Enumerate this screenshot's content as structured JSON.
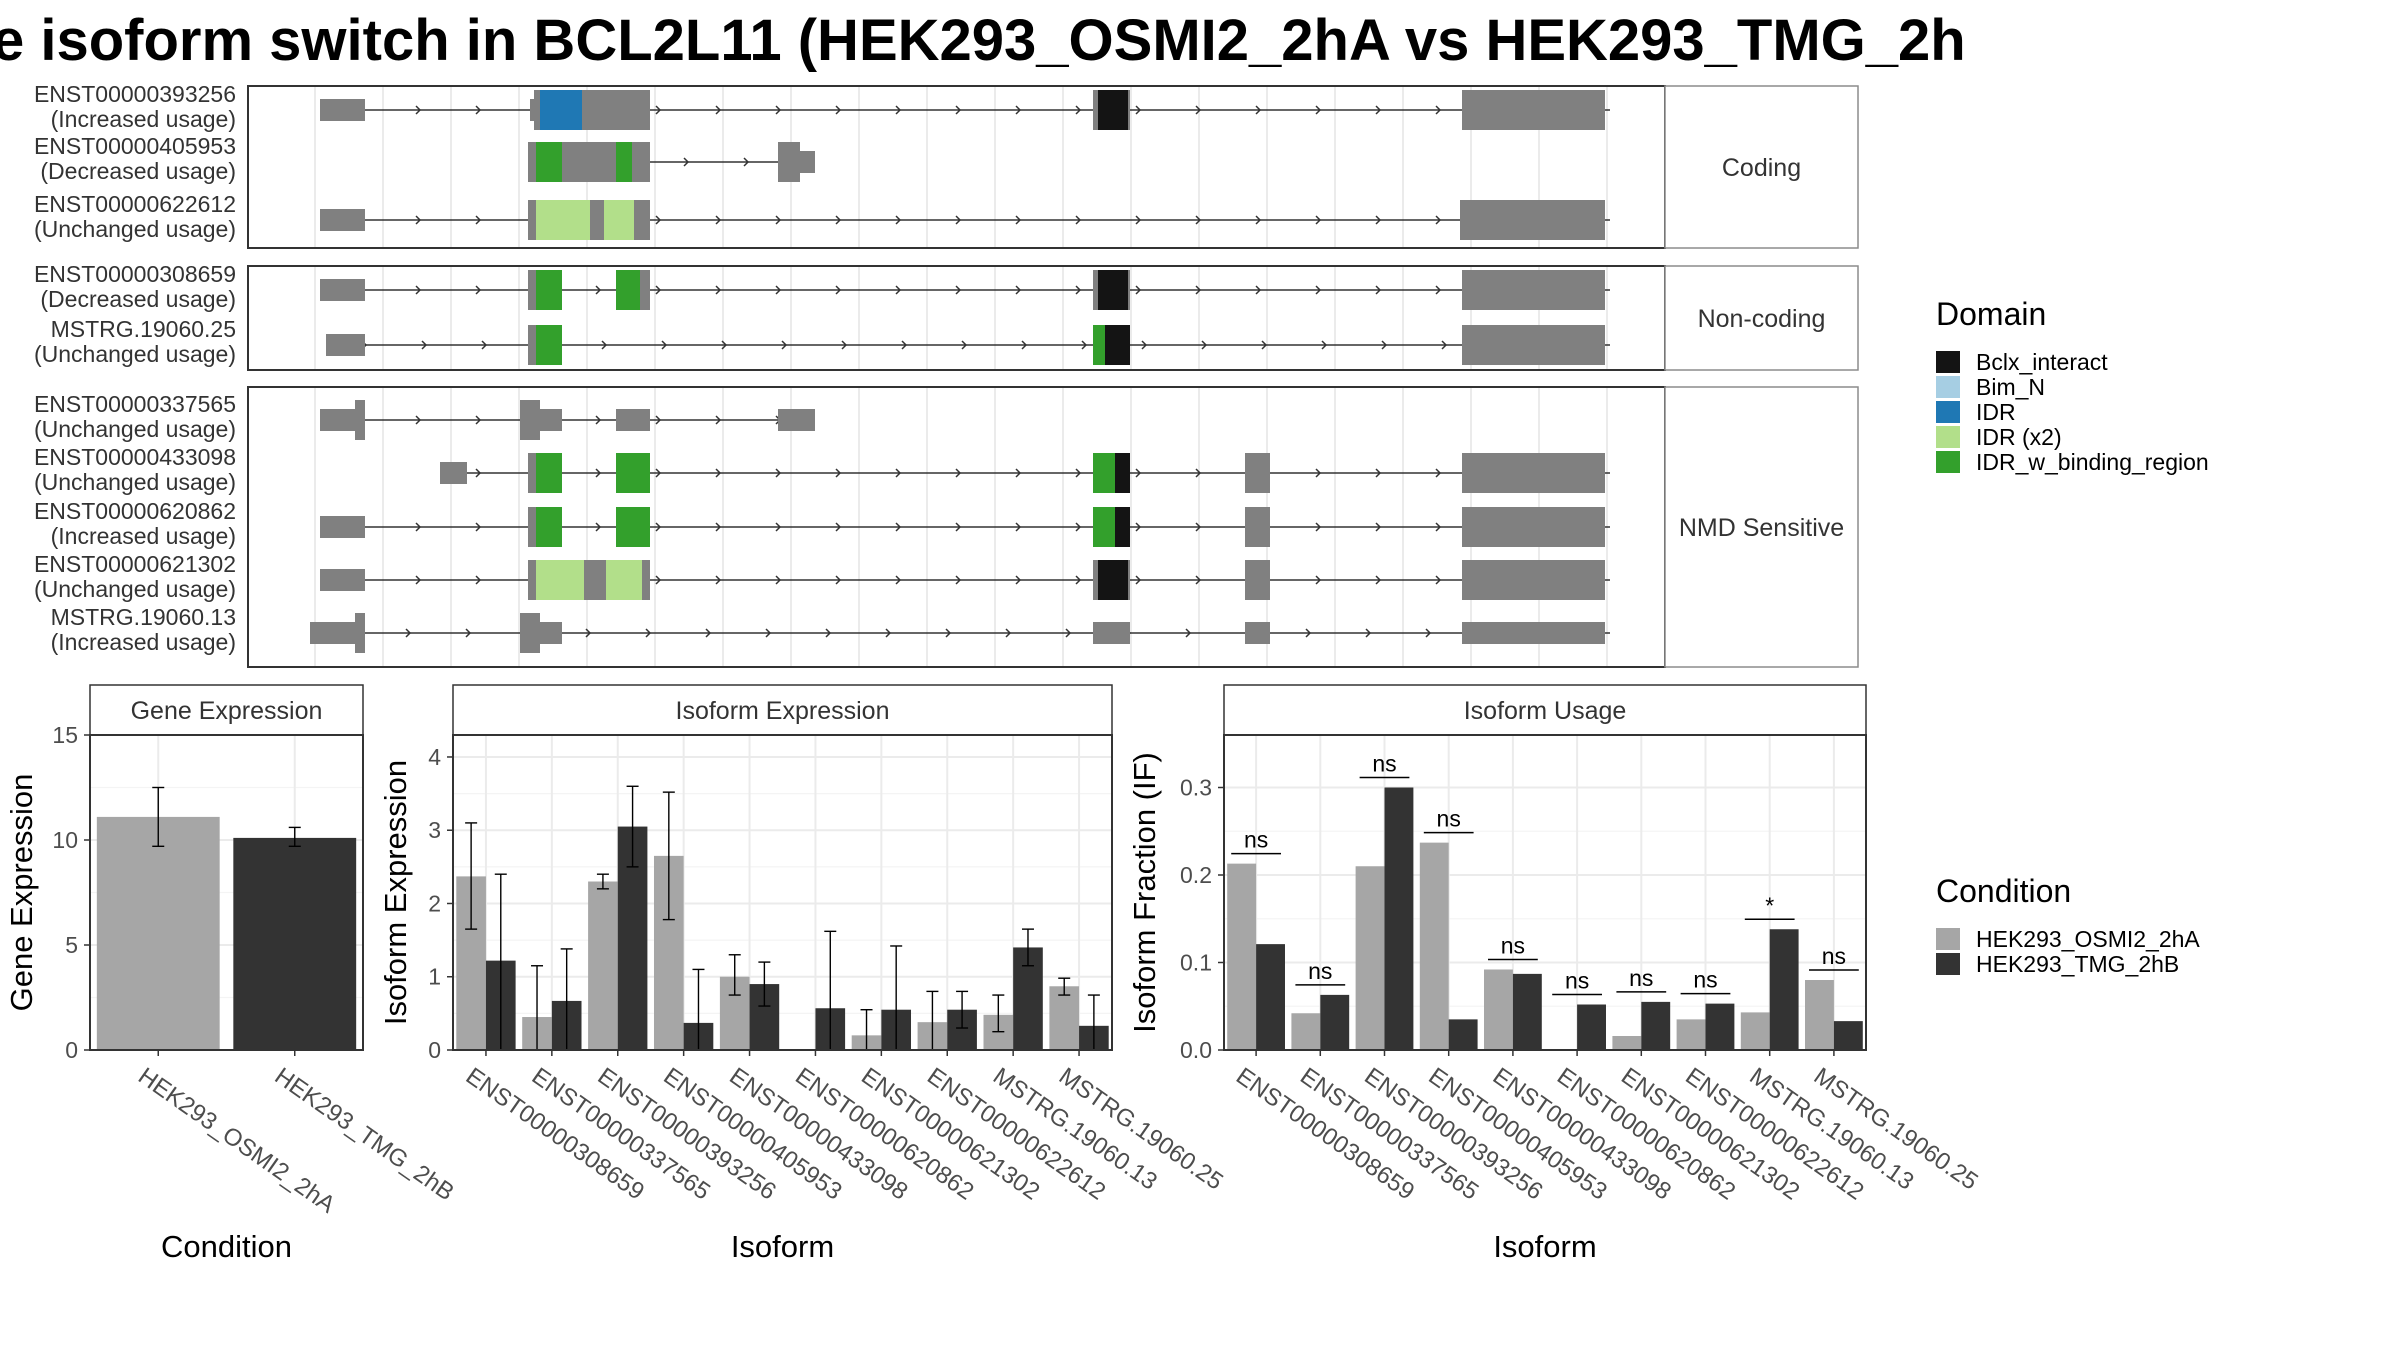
{
  "title": "e isoform switch in BCL2L11 (HEK293_OSMI2_2hA vs HEK293_TMG_2h",
  "colors": {
    "ink": "#000000",
    "exon": "#808080",
    "panel_border": "#333333",
    "grid": "#ebebeb",
    "strip_bg": "#ffffff",
    "cond_light": "#a6a6a6",
    "cond_dark": "#333333"
  },
  "structure": {
    "facets": [
      {
        "label": "Coding",
        "isoforms": [
          {
            "id": "ENST00000393256",
            "usage": "(Increased usage)"
          },
          {
            "id": "ENST00000405953",
            "usage": "(Decreased usage)"
          },
          {
            "id": "ENST00000622612",
            "usage": "(Unchanged usage)"
          }
        ]
      },
      {
        "label": "Non-coding",
        "isoforms": [
          {
            "id": "ENST00000308659",
            "usage": "(Decreased usage)"
          },
          {
            "id": "MSTRG.19060.25",
            "usage": "(Unchanged usage)"
          }
        ]
      },
      {
        "label": "NMD Sensitive",
        "isoforms": [
          {
            "id": "ENST00000337565",
            "usage": "(Unchanged usage)"
          },
          {
            "id": "ENST00000433098",
            "usage": "(Unchanged usage)"
          },
          {
            "id": "ENST00000620862",
            "usage": "(Increased usage)"
          },
          {
            "id": "ENST00000621302",
            "usage": "(Unchanged usage)"
          },
          {
            "id": "MSTRG.19060.13",
            "usage": "(Increased usage)"
          }
        ]
      }
    ]
  },
  "domain_legend": {
    "title": "Domain",
    "items": [
      {
        "label": "Bclx_interact",
        "color": "#141414"
      },
      {
        "label": "Bim_N",
        "color": "#a6cee3"
      },
      {
        "label": "IDR",
        "color": "#1f78b4"
      },
      {
        "label": "IDR (x2)",
        "color": "#b2df8a"
      },
      {
        "label": "IDR_w_binding_region",
        "color": "#33a02c"
      }
    ]
  },
  "condition_legend": {
    "title": "Condition",
    "items": [
      {
        "label": "HEK293_OSMI2_2hA",
        "color": "#a6a6a6"
      },
      {
        "label": "HEK293_TMG_2hB",
        "color": "#333333"
      }
    ]
  },
  "chart_data": [
    {
      "type": "bar",
      "title": "Gene Expression",
      "xlabel": "Condition",
      "ylabel": "Gene Expression",
      "ylim": [
        0,
        15
      ],
      "yticks": [
        0,
        5,
        10,
        15
      ],
      "categories": [
        "HEK293_OSMI2_2hA",
        "HEK293_TMG_2hB"
      ],
      "values": [
        11.1,
        10.1
      ],
      "errors": [
        [
          9.7,
          12.5
        ],
        [
          9.7,
          10.6
        ]
      ]
    },
    {
      "type": "bar",
      "title": "Isoform Expression",
      "xlabel": "Isoform",
      "ylabel": "Isoform Expression",
      "ylim": [
        0,
        4.3
      ],
      "yticks": [
        0,
        1,
        2,
        3,
        4
      ],
      "categories": [
        "ENST00000308659",
        "ENST00000337565",
        "ENST00000393256",
        "ENST00000405953",
        "ENST00000433098",
        "ENST00000620862",
        "ENST00000621302",
        "ENST00000622612",
        "MSTRG.19060.13",
        "MSTRG.19060.25"
      ],
      "series": [
        {
          "name": "HEK293_OSMI2_2hA",
          "values": [
            2.37,
            0.45,
            2.3,
            2.65,
            1.0,
            0.0,
            0.2,
            0.38,
            0.48,
            0.87
          ],
          "errors": [
            [
              1.65,
              3.1
            ],
            [
              0.0,
              1.15
            ],
            [
              2.2,
              2.4
            ],
            [
              1.78,
              3.52
            ],
            [
              0.75,
              1.3
            ],
            [
              0.0,
              0.0
            ],
            [
              0.0,
              0.55
            ],
            [
              0.0,
              0.8
            ],
            [
              0.25,
              0.75
            ],
            [
              0.75,
              0.98
            ]
          ]
        },
        {
          "name": "HEK293_TMG_2hB",
          "values": [
            1.22,
            0.67,
            3.05,
            0.37,
            0.9,
            0.57,
            0.55,
            0.55,
            1.4,
            0.33
          ],
          "errors": [
            [
              0.0,
              2.4
            ],
            [
              0.0,
              1.38
            ],
            [
              2.5,
              3.6
            ],
            [
              0.0,
              1.1
            ],
            [
              0.6,
              1.2
            ],
            [
              0.0,
              1.62
            ],
            [
              0.0,
              1.42
            ],
            [
              0.3,
              0.8
            ],
            [
              1.15,
              1.65
            ],
            [
              0.0,
              0.75
            ]
          ]
        }
      ]
    },
    {
      "type": "bar",
      "title": "Isoform Usage",
      "xlabel": "Isoform",
      "ylabel": "Isoform Fraction (IF)",
      "ylim": [
        0,
        0.36
      ],
      "yticks": [
        0.0,
        0.1,
        0.2,
        0.3
      ],
      "ytick_labels": [
        "0.0",
        "0.1",
        "0.2",
        "0.3"
      ],
      "categories": [
        "ENST00000308659",
        "ENST00000337565",
        "ENST00000393256",
        "ENST00000405953",
        "ENST00000433098",
        "ENST00000620862",
        "ENST00000621302",
        "ENST00000622612",
        "MSTRG.19060.13",
        "MSTRG.19060.25"
      ],
      "series": [
        {
          "name": "HEK293_OSMI2_2hA",
          "values": [
            0.213,
            0.042,
            0.21,
            0.237,
            0.092,
            0.0,
            0.016,
            0.035,
            0.043,
            0.08
          ]
        },
        {
          "name": "HEK293_TMG_2hB",
          "values": [
            0.121,
            0.063,
            0.3,
            0.035,
            0.087,
            0.052,
            0.055,
            0.053,
            0.138,
            0.033
          ]
        }
      ],
      "significance": [
        "ns",
        "ns",
        "ns",
        "ns",
        "ns",
        "ns",
        "ns",
        "ns",
        "*",
        "ns"
      ]
    }
  ]
}
